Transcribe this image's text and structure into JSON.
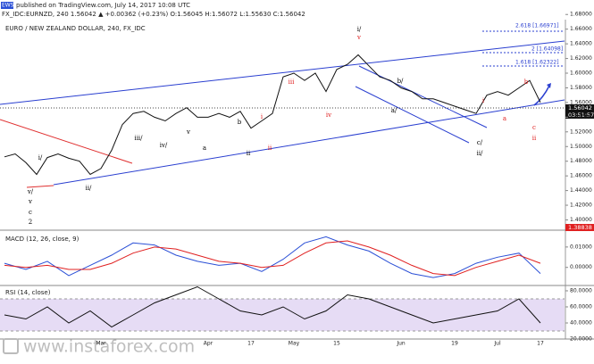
{
  "header": {
    "brand": "EWS",
    "published": "published on TradingView.com, July 14, 2017 10:08 UTC",
    "symbol_line": "FX_IDC:EURNZD, 240  1.56042  ▲ +0.00362 (+0.23%)  O:1.56045 H:1.56072 L:1.55630 C:1.56042",
    "last_price_label": "1.56042",
    "countdown": "03:51:57",
    "low_label": "1.38838",
    "watermark": "www.instaforex.com"
  },
  "fib_labels": [
    "2.618 [1.66971]",
    "2 [1.64098]",
    "1.618 [1.62322]"
  ],
  "annotations": [
    {
      "text": "i/",
      "color": "#000000"
    },
    {
      "text": "v/",
      "color": "#000000"
    },
    {
      "text": "v",
      "color": "#000000"
    },
    {
      "text": "c",
      "color": "#000000"
    },
    {
      "text": "2",
      "color": "#000000"
    },
    {
      "text": "ii/",
      "color": "#000000"
    },
    {
      "text": "iii/",
      "color": "#000000"
    },
    {
      "text": "iv/",
      "color": "#000000"
    },
    {
      "text": "v",
      "color": "#000000"
    },
    {
      "text": "a",
      "color": "#000000"
    },
    {
      "text": "b",
      "color": "#000000"
    },
    {
      "text": "i",
      "color": "#e02020"
    },
    {
      "text": "ii",
      "color": "#e02020"
    },
    {
      "text": "ii",
      "color": "#000000"
    },
    {
      "text": "iii",
      "color": "#e02020"
    },
    {
      "text": "iv",
      "color": "#e02020"
    },
    {
      "text": "i/",
      "color": "#000000"
    },
    {
      "text": "v",
      "color": "#e02020"
    },
    {
      "text": "b/",
      "color": "#000000"
    },
    {
      "text": "a/",
      "color": "#000000"
    },
    {
      "text": "c/",
      "color": "#000000"
    },
    {
      "text": "ii/",
      "color": "#000000"
    },
    {
      "text": "i",
      "color": "#e02020"
    },
    {
      "text": "a",
      "color": "#e02020"
    },
    {
      "text": "b",
      "color": "#e02020"
    },
    {
      "text": "c",
      "color": "#e02020"
    },
    {
      "text": "ii",
      "color": "#e02020"
    }
  ],
  "chart_data": [
    {
      "type": "line",
      "title": "EURO / NEW ZEALAND DOLLAR, 240, FX_IDC",
      "color": "#111111",
      "categories": [
        null,
        null,
        null,
        null,
        null,
        null,
        null,
        null,
        null,
        "Mar",
        null,
        null,
        null,
        null,
        null,
        null,
        null,
        null,
        null,
        "Apr",
        null,
        null,
        null,
        "17",
        null,
        null,
        null,
        "May",
        null,
        null,
        null,
        "15",
        null,
        null,
        null,
        null,
        null,
        "Jun",
        null,
        null,
        null,
        null,
        "19",
        null,
        null,
        null,
        "Jul",
        null,
        null,
        null,
        "17"
      ],
      "values": [
        1.486,
        1.49,
        1.478,
        1.462,
        1.485,
        1.49,
        1.484,
        1.48,
        1.462,
        1.47,
        1.495,
        1.53,
        1.545,
        1.548,
        1.54,
        1.535,
        1.545,
        1.553,
        1.54,
        1.54,
        1.545,
        1.54,
        1.548,
        1.525,
        1.535,
        1.545,
        1.595,
        1.6,
        1.59,
        1.6,
        1.575,
        1.605,
        1.612,
        1.625,
        1.61,
        1.595,
        1.59,
        1.58,
        1.575,
        1.565,
        1.565,
        1.56,
        1.555,
        1.55,
        1.545,
        1.57,
        1.575,
        1.57,
        1.58,
        1.59,
        1.56
      ],
      "ylim": [
        1.386,
        1.69
      ],
      "yticks": [
        {
          "value": 1.68,
          "label": "1.68000"
        },
        {
          "value": 1.66,
          "label": "1.66000"
        },
        {
          "value": 1.64,
          "label": "1.64000"
        },
        {
          "value": 1.62,
          "label": "1.62000"
        },
        {
          "value": 1.6,
          "label": "1.60000"
        },
        {
          "value": 1.58,
          "label": "1.58000"
        },
        {
          "value": 1.56,
          "label": "1.56000"
        },
        {
          "value": 1.54,
          "label": "1.54000"
        },
        {
          "value": 1.52,
          "label": "1.52000"
        },
        {
          "value": 1.5,
          "label": "1.50000"
        },
        {
          "value": 1.48,
          "label": "1.48000"
        },
        {
          "value": 1.46,
          "label": "1.46000"
        },
        {
          "value": 1.44,
          "label": "1.44000"
        },
        {
          "value": 1.42,
          "label": "1.42000"
        },
        {
          "value": 1.4,
          "label": "1.40000"
        }
      ]
    },
    {
      "type": "line",
      "title": "MACD (12, 26, close, 9)",
      "ylim": [
        -0.008,
        0.0165
      ],
      "yticks": [
        {
          "value": 0.01,
          "label": "0.01000"
        },
        {
          "value": 0,
          "label": "0.00000"
        }
      ],
      "series": [
        {
          "color": "#2a4fd6",
          "values": [
            0.002,
            -0.001,
            0.003,
            -0.004,
            0.001,
            0.006,
            0.012,
            0.011,
            0.006,
            0.003,
            0.001,
            0.002,
            -0.002,
            0.004,
            0.012,
            0.015,
            0.011,
            0.008,
            0.002,
            -0.003,
            -0.005,
            -0.003,
            0.002,
            0.005,
            0.007,
            -0.003
          ]
        },
        {
          "color": "#e02020",
          "values": [
            0.001,
            0.0,
            0.001,
            -0.001,
            -0.001,
            0.002,
            0.007,
            0.01,
            0.009,
            0.006,
            0.003,
            0.002,
            0.0,
            0.001,
            0.007,
            0.012,
            0.013,
            0.01,
            0.006,
            0.001,
            -0.003,
            -0.004,
            0.0,
            0.003,
            0.006,
            0.002
          ]
        }
      ]
    },
    {
      "type": "line",
      "title": "RSI (14, close)",
      "color": "#111111",
      "ylim": [
        20,
        84.4
      ],
      "bands": [
        30,
        70
      ],
      "yticks": [
        {
          "value": 80,
          "label": "80.0000"
        },
        {
          "value": 60,
          "label": "60.0000"
        },
        {
          "value": 40,
          "label": "40.0000"
        },
        {
          "value": 20,
          "label": "20.0000"
        }
      ],
      "values": [
        50,
        45,
        60,
        40,
        55,
        35,
        50,
        65,
        75,
        85,
        70,
        55,
        50,
        60,
        45,
        55,
        75,
        70,
        60,
        50,
        40,
        45,
        50,
        55,
        70,
        40
      ]
    }
  ]
}
